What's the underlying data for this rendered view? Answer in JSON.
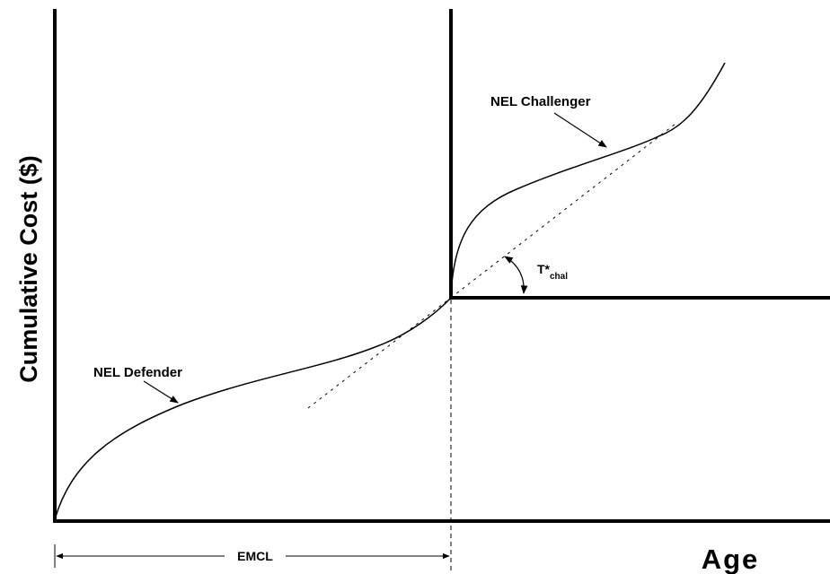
{
  "y_axis_label": "Cumulative Cost ($)",
  "x_axis_label": "Age",
  "curves": {
    "defender": "NEL Defender",
    "challenger": "NEL Challenger"
  },
  "angle_label": {
    "base": "T*",
    "subscript": "chal"
  },
  "span_label": "EMCL"
}
